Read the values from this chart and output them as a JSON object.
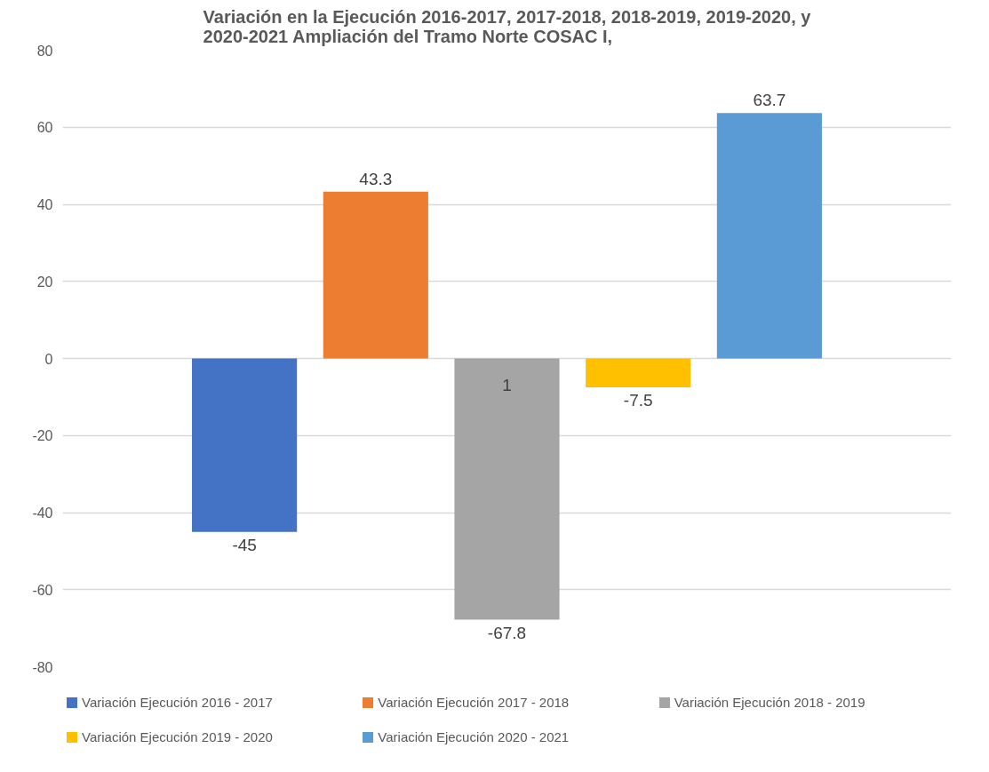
{
  "chart_data": {
    "type": "bar",
    "title": "Variación en la Ejecución 2016-2017, 2017-2018, 2018-2019, 2019-2020, y\n2020-2021 Ampliación del Tramo Norte COSAC I,",
    "categories": [
      null
    ],
    "series": [
      {
        "name": "Variación Ejecución 2016 - 2017",
        "color": "#4472c4",
        "values": [
          -45
        ]
      },
      {
        "name": "Variación Ejecución 2017 - 2018",
        "color": "#ed7d31",
        "values": [
          43.3
        ]
      },
      {
        "name": "Variación Ejecución 2018 - 2019",
        "color": "#a5a5a5",
        "values": [
          -67.8
        ]
      },
      {
        "name": "Variación Ejecución 2019 - 2020",
        "color": "#ffc000",
        "values": [
          -7.5
        ]
      },
      {
        "name": "Variación Ejecución 2020 - 2021",
        "color": "#5b9bd5",
        "values": [
          63.7
        ]
      }
    ],
    "data_labels": true,
    "annotations": [
      "1"
    ],
    "ylim": [
      -80,
      80
    ],
    "yticks": [
      -80,
      -60,
      -40,
      -20,
      0,
      20,
      40,
      60,
      80
    ],
    "grid": "y",
    "legend": "bottom"
  }
}
